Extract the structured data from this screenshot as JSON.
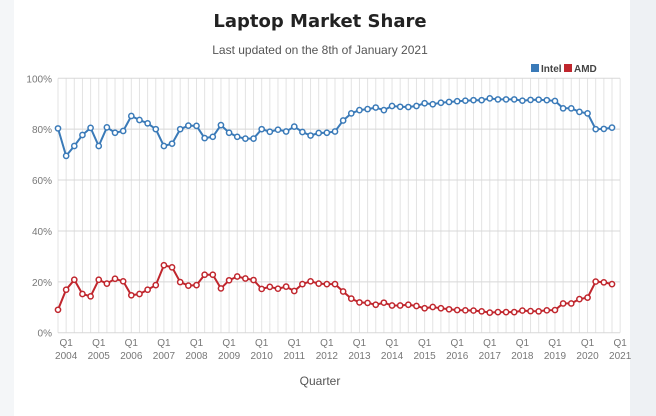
{
  "chart_data": {
    "type": "line",
    "title": "Laptop Market Share",
    "subtitle": "Last updated on the 8th of January 2021",
    "xlabel": "Quarter",
    "ylabel": "",
    "ylim": [
      0,
      100
    ],
    "y_ticks": [
      "0%",
      "20%",
      "40%",
      "60%",
      "80%",
      "100%"
    ],
    "x_range": [
      "Q4 2003",
      "Q1 2021"
    ],
    "x_start": {
      "quarter": 4,
      "year": 2003
    },
    "x_tick_labels": [
      {
        "q": "Q1",
        "year": "2004"
      },
      {
        "q": "Q1",
        "year": "2005"
      },
      {
        "q": "Q1",
        "year": "2006"
      },
      {
        "q": "Q1",
        "year": "2007"
      },
      {
        "q": "Q1",
        "year": "2008"
      },
      {
        "q": "Q1",
        "year": "2009"
      },
      {
        "q": "Q1",
        "year": "2010"
      },
      {
        "q": "Q1",
        "year": "2011"
      },
      {
        "q": "Q1",
        "year": "2012"
      },
      {
        "q": "Q1",
        "year": "2013"
      },
      {
        "q": "Q1",
        "year": "2014"
      },
      {
        "q": "Q1",
        "year": "2015"
      },
      {
        "q": "Q1",
        "year": "2016"
      },
      {
        "q": "Q1",
        "year": "2017"
      },
      {
        "q": "Q1",
        "year": "2018"
      },
      {
        "q": "Q1",
        "year": "2019"
      },
      {
        "q": "Q1",
        "year": "2020"
      },
      {
        "q": "Q1",
        "year": "2021"
      }
    ],
    "grid": true,
    "legend_position": "top-right",
    "series": [
      {
        "name": "Intel",
        "color": "#3a7ab8",
        "values": [
          80.3,
          69.5,
          73.4,
          77.7,
          80.5,
          73.4,
          80.7,
          78.6,
          79.3,
          85.2,
          83.6,
          82.3,
          80.0,
          73.4,
          74.3,
          80.0,
          81.4,
          81.3,
          76.5,
          77.0,
          81.6,
          78.6,
          77.0,
          76.3,
          76.3,
          80.0,
          79.0,
          79.8,
          79.1,
          81.0,
          78.9,
          77.5,
          78.5,
          78.6,
          79.1,
          83.4,
          86.2,
          87.5,
          87.9,
          88.5,
          87.5,
          89.1,
          88.8,
          88.7,
          89.1,
          90.2,
          89.8,
          90.4,
          90.7,
          91.0,
          91.2,
          91.4,
          91.4,
          92.1,
          91.7,
          91.7,
          91.7,
          91.2,
          91.5,
          91.6,
          91.4,
          91.1,
          88.2,
          88.2,
          86.8,
          86.2,
          80.0,
          80.1,
          80.6
        ]
      },
      {
        "name": "AMD",
        "color": "#c0262d",
        "values": [
          9.0,
          16.9,
          20.8,
          15.2,
          14.3,
          20.8,
          19.3,
          21.2,
          20.2,
          14.7,
          15.2,
          16.9,
          18.7,
          26.5,
          25.7,
          19.9,
          18.5,
          18.7,
          22.8,
          22.8,
          17.4,
          20.6,
          22.1,
          21.3,
          20.7,
          17.2,
          18.0,
          17.3,
          18.1,
          16.4,
          19.1,
          20.2,
          19.3,
          19.1,
          19.1,
          16.2,
          13.4,
          11.9,
          11.7,
          11.0,
          11.8,
          10.7,
          10.7,
          11.0,
          10.5,
          9.6,
          10.1,
          9.6,
          9.2,
          8.9,
          8.8,
          8.7,
          8.4,
          7.9,
          8.1,
          8.1,
          8.1,
          8.7,
          8.5,
          8.4,
          8.8,
          8.9,
          11.5,
          11.5,
          13.2,
          13.8,
          20.1,
          19.8,
          19.1
        ]
      }
    ]
  }
}
